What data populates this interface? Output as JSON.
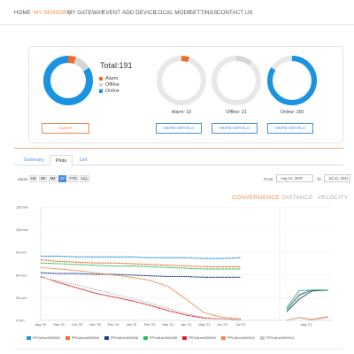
{
  "nav": {
    "items": [
      "HOME",
      "MY SENSORS",
      "MY GATEWAY",
      "EVENT",
      "ADD DEVICE",
      "LOCAL MODE",
      "SETTINGS",
      "CONTACT US"
    ],
    "active_index": 1
  },
  "summary": {
    "total_label": "Total:191",
    "alarm": 10,
    "offline": 21,
    "online": 160,
    "legend": [
      "Alarm",
      "Offline",
      "Online"
    ],
    "clear_label": "CLEAR",
    "captions": [
      "Alarm: 10",
      "Offline: 21",
      "Online: 160"
    ],
    "details_label": "MORE DETAILS"
  },
  "colors": {
    "alarm": "#f06a28",
    "offline": "#d6d6d6",
    "online": "#1a93e0",
    "accent": "#f0884a",
    "link": "#4a90d9"
  },
  "tabs": [
    "Summary",
    "Plots",
    "List"
  ],
  "active_tab": 1,
  "zoom": {
    "label": "Zoom",
    "options": [
      "1M",
      "3M",
      "6M",
      "1Y",
      "YTD",
      "ALL"
    ],
    "active_index": 3
  },
  "range": {
    "from_label": "From",
    "from_value": "Aug 21, 2020",
    "to_label": "To",
    "to_value": "Jul 21, 2021"
  },
  "chart_tabs": [
    "CONVERGENCE",
    "DISTANCE",
    "VELOCITY"
  ],
  "chart_tab_active": 0,
  "chart_data": {
    "type": "line",
    "y_ticks": [
      "0 mm",
      "30 mm",
      "60 mm",
      "90 mm",
      "120 mm",
      "150 mm"
    ],
    "x_ticks": [
      "Aug '20",
      "Sep '20",
      "Oct '20",
      "Nov '20",
      "Dec '20",
      "Jan '21",
      "Feb '21",
      "Mar '21",
      "Apr '21",
      "May '21",
      "Jun '21",
      "Jul '21"
    ],
    "ylim": [
      0,
      150
    ],
    "mini_x_ticks": [
      "Aug '21"
    ],
    "series": [
      {
        "name": "PPCst1m1000002",
        "color": "#1a93e0",
        "values": [
          85,
          85,
          84,
          84,
          84,
          84,
          83,
          83,
          83,
          82,
          82,
          83
        ]
      },
      {
        "name": "PPCst1m1000004",
        "color": "#f06a28",
        "values": [
          80,
          78,
          77,
          76,
          76,
          75,
          74,
          73,
          72,
          71,
          71,
          71
        ]
      },
      {
        "name": "PPCst1m1000006",
        "color": "#1f3f85",
        "values": [
          63,
          62,
          62,
          61,
          61,
          60,
          59,
          58,
          58,
          57,
          57,
          57
        ]
      },
      {
        "name": "PPCst1m1000008",
        "color": "#2ebd5c",
        "values": [
          76,
          75,
          74,
          73,
          72,
          72,
          71,
          70,
          69,
          68,
          68,
          68
        ]
      },
      {
        "name": "PPCst1m1000010",
        "color": "#d61f1f",
        "values": [
          58,
          50,
          43,
          36,
          31,
          26,
          20,
          13,
          7,
          3,
          2,
          1
        ]
      },
      {
        "name": "PPCst1m1000012",
        "color": "#f0884a",
        "values": [
          70,
          68,
          66,
          63,
          60,
          57,
          53,
          45,
          28,
          10,
          4,
          2
        ]
      },
      {
        "name": "PPCst1m1000014",
        "color": "#c8c8c8",
        "values": [
          57,
          52,
          47,
          41,
          35,
          29,
          23,
          16,
          9,
          4,
          2,
          1
        ]
      }
    ]
  }
}
